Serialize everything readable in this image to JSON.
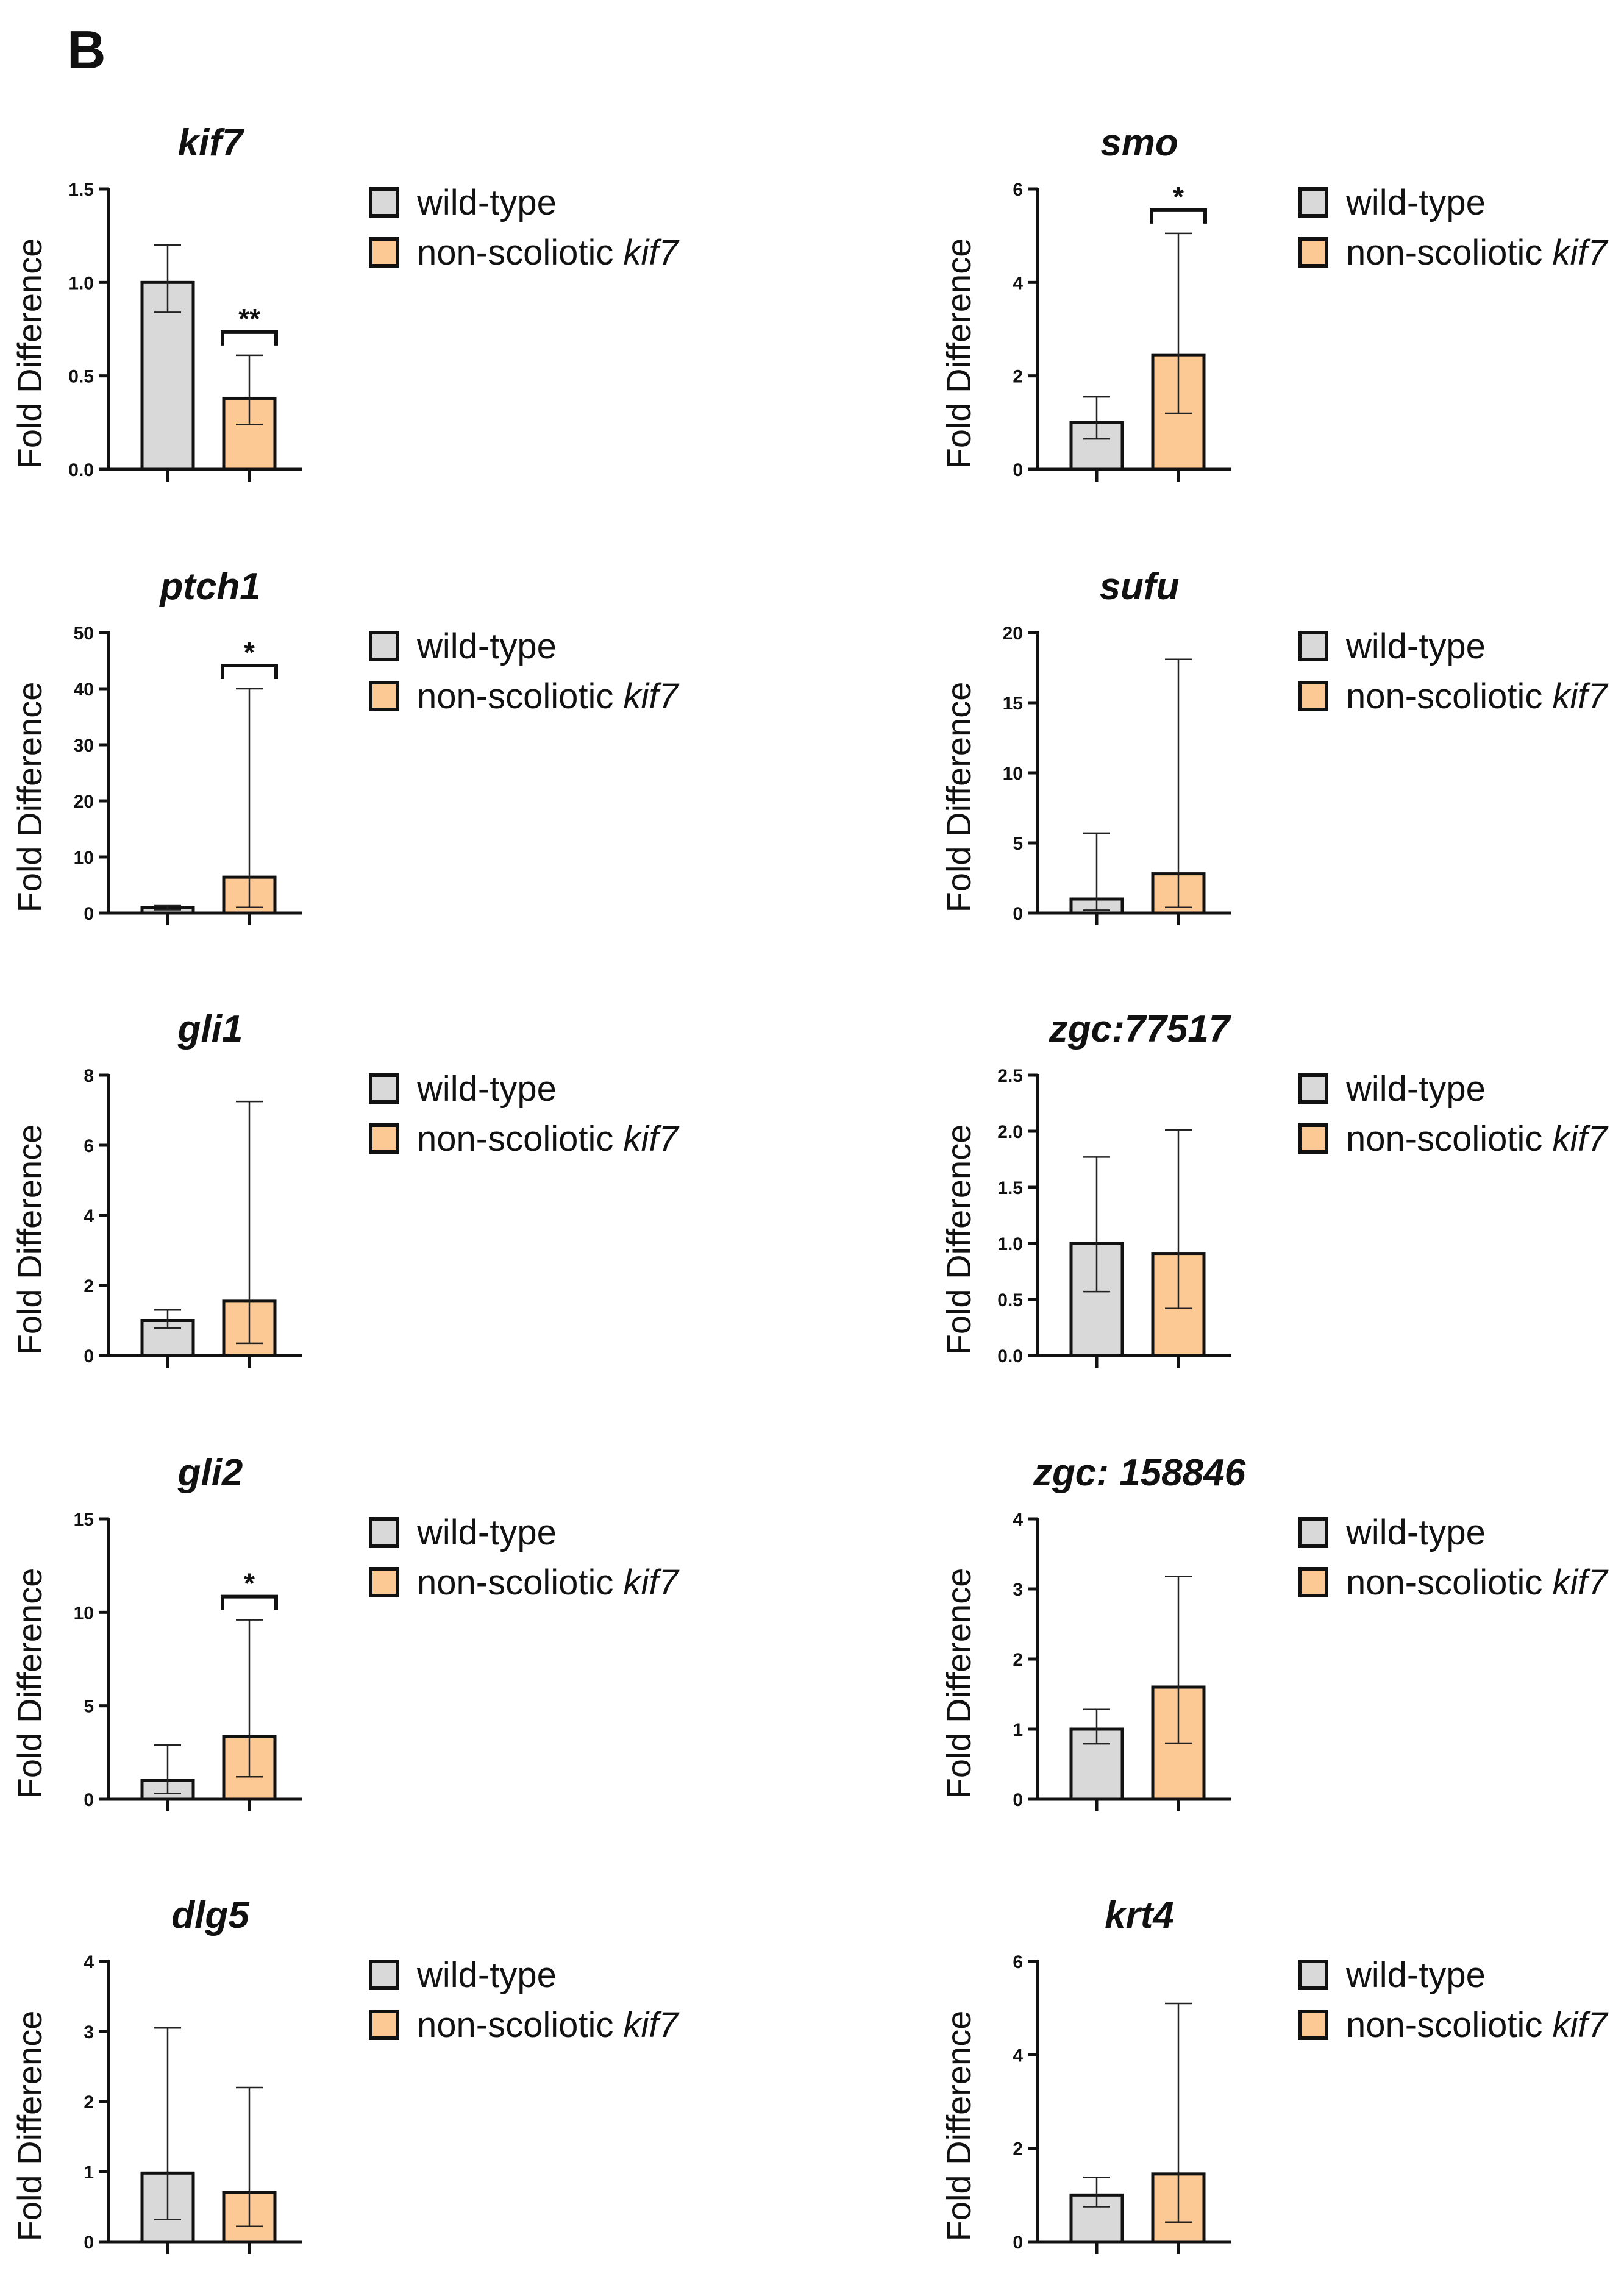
{
  "panel_label": "B",
  "legend": {
    "wild_type": "wild-type",
    "mutant_prefix": "non-scoliotic ",
    "mutant_gene": "kif7"
  },
  "colors": {
    "wild_type": "#d9d9d9",
    "mutant": "#fcc894",
    "axis": "#111111"
  },
  "chart_data": [
    {
      "type": "bar",
      "title": "kif7",
      "ylabel": "Fold  Difference",
      "ylim": [
        0,
        1.5
      ],
      "yticks": [
        0.0,
        0.5,
        1.0,
        1.5
      ],
      "tick_labels": [
        "0.0",
        "0.5",
        "1.0",
        "1.5"
      ],
      "categories": [
        "wild-type",
        "non-scoliotic kif7"
      ],
      "values": [
        1.0,
        0.38
      ],
      "err_low": [
        0.84,
        0.24
      ],
      "err_high": [
        1.2,
        0.61
      ],
      "significance": "**"
    },
    {
      "type": "bar",
      "title": "smo",
      "ylabel": "Fold Difference",
      "ylim": [
        0,
        6
      ],
      "yticks": [
        0,
        2,
        4,
        6
      ],
      "tick_labels": [
        "0",
        "2",
        "4",
        "6"
      ],
      "categories": [
        "wild-type",
        "non-scoliotic kif7"
      ],
      "values": [
        1.0,
        2.45
      ],
      "err_low": [
        0.65,
        1.2
      ],
      "err_high": [
        1.55,
        5.05
      ],
      "significance": "*"
    },
    {
      "type": "bar",
      "title": "ptch1",
      "ylabel": "Fold Difference",
      "ylim": [
        0,
        50
      ],
      "yticks": [
        0,
        10,
        20,
        30,
        40,
        50
      ],
      "tick_labels": [
        "0",
        "10",
        "20",
        "30",
        "40",
        "50"
      ],
      "categories": [
        "wild-type",
        "non-scoliotic kif7"
      ],
      "values": [
        1.0,
        6.4
      ],
      "err_low": [
        0.6,
        1.0
      ],
      "err_high": [
        1.3,
        40
      ],
      "significance": "*"
    },
    {
      "type": "bar",
      "title": "sufu",
      "ylabel": "Fold Difference",
      "ylim": [
        0,
        20
      ],
      "yticks": [
        0,
        5,
        10,
        15,
        20
      ],
      "tick_labels": [
        "0",
        "5",
        "10",
        "15",
        "20"
      ],
      "categories": [
        "wild-type",
        "non-scoliotic kif7"
      ],
      "values": [
        1.0,
        2.8
      ],
      "err_low": [
        0.2,
        0.4
      ],
      "err_high": [
        5.7,
        18.1
      ],
      "significance": ""
    },
    {
      "type": "bar",
      "title": "gli1",
      "ylabel": "Fold Difference",
      "ylim": [
        0,
        8
      ],
      "yticks": [
        0,
        2,
        4,
        6,
        8
      ],
      "tick_labels": [
        "0",
        "2",
        "4",
        "6",
        "8"
      ],
      "categories": [
        "wild-type",
        "non-scoliotic kif7"
      ],
      "values": [
        1.0,
        1.55
      ],
      "err_low": [
        0.78,
        0.35
      ],
      "err_high": [
        1.3,
        7.25
      ],
      "significance": ""
    },
    {
      "type": "bar",
      "title": "zgc:77517",
      "ylabel": "Fold Difference",
      "ylim": [
        0,
        2.5
      ],
      "yticks": [
        0.0,
        0.5,
        1.0,
        1.5,
        2.0,
        2.5
      ],
      "tick_labels": [
        "0.0",
        "0.5",
        "1.0",
        "1.5",
        "2.0",
        "2.5"
      ],
      "categories": [
        "wild-type",
        "non-scoliotic kif7"
      ],
      "values": [
        1.0,
        0.91
      ],
      "err_low": [
        0.57,
        0.42
      ],
      "err_high": [
        1.77,
        2.01
      ],
      "significance": ""
    },
    {
      "type": "bar",
      "title": "gli2",
      "ylabel": "Fold Difference",
      "ylim": [
        0,
        15
      ],
      "yticks": [
        0,
        5,
        10,
        15
      ],
      "tick_labels": [
        "0",
        "5",
        "10",
        "15"
      ],
      "categories": [
        "wild-type",
        "non-scoliotic kif7"
      ],
      "values": [
        1.0,
        3.35
      ],
      "err_low": [
        0.3,
        1.2
      ],
      "err_high": [
        2.9,
        9.6
      ],
      "significance": "*"
    },
    {
      "type": "bar",
      "title": "zgc: 158846",
      "ylabel": "Fold Difference",
      "ylim": [
        0,
        4
      ],
      "yticks": [
        0,
        1,
        2,
        3,
        4
      ],
      "tick_labels": [
        "0",
        "1",
        "2",
        "3",
        "4"
      ],
      "categories": [
        "wild-type",
        "non-scoliotic kif7"
      ],
      "values": [
        1.0,
        1.6
      ],
      "err_low": [
        0.79,
        0.8
      ],
      "err_high": [
        1.28,
        3.18
      ],
      "significance": ""
    },
    {
      "type": "bar",
      "title": "dlg5",
      "ylabel": "Fold Difference",
      "ylim": [
        0,
        4
      ],
      "yticks": [
        0,
        1,
        2,
        3,
        4
      ],
      "tick_labels": [
        "0",
        "1",
        "2",
        "3",
        "4"
      ],
      "categories": [
        "wild-type",
        "non-scoliotic kif7"
      ],
      "values": [
        0.98,
        0.7
      ],
      "err_low": [
        0.32,
        0.22
      ],
      "err_high": [
        3.05,
        2.2
      ],
      "significance": ""
    },
    {
      "type": "bar",
      "title": "krt4",
      "ylabel": "Fold Difference",
      "ylim": [
        0,
        6
      ],
      "yticks": [
        0,
        2,
        4,
        6
      ],
      "tick_labels": [
        "0",
        "2",
        "4",
        "6"
      ],
      "categories": [
        "wild-type",
        "non-scoliotic kif7"
      ],
      "values": [
        1.0,
        1.45
      ],
      "err_low": [
        0.75,
        0.42
      ],
      "err_high": [
        1.38,
        5.1
      ],
      "significance": ""
    }
  ]
}
